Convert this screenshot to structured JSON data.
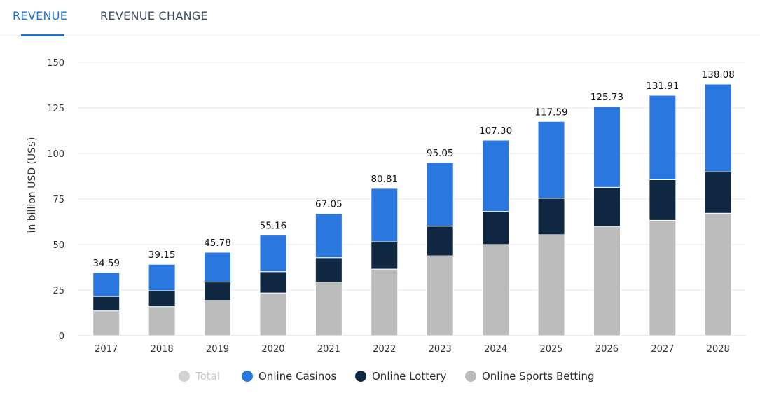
{
  "tabs": [
    {
      "label": "REVENUE",
      "active": true
    },
    {
      "label": "REVENUE CHANGE",
      "active": false
    }
  ],
  "colors": {
    "casinos": "#2a77e0",
    "lottery": "#102741",
    "sports": "#bcbcbc",
    "total_inactive": "#d2d2d2",
    "accent": "#1a6fd8"
  },
  "legend": [
    {
      "name": "Total",
      "color": "#d2d2d2",
      "inactive": true
    },
    {
      "name": "Online Casinos",
      "color": "#2a77e0",
      "inactive": false
    },
    {
      "name": "Online Lottery",
      "color": "#102741",
      "inactive": false
    },
    {
      "name": "Online Sports Betting",
      "color": "#bcbcbc",
      "inactive": false
    }
  ],
  "chart_data": {
    "type": "bar",
    "stacked": true,
    "categories": [
      "2017",
      "2018",
      "2019",
      "2020",
      "2021",
      "2022",
      "2023",
      "2024",
      "2025",
      "2026",
      "2027",
      "2028"
    ],
    "ylabel": "in billion USD (US$)",
    "ylim": [
      0,
      150
    ],
    "yticks": [
      0,
      25,
      50,
      75,
      100,
      125,
      150
    ],
    "grid": true,
    "legend_position": "bottom",
    "totals": [
      "34.59",
      "39.15",
      "45.78",
      "55.16",
      "67.05",
      "80.81",
      "95.05",
      "107.30",
      "117.59",
      "125.73",
      "131.91",
      "138.08"
    ],
    "series": [
      {
        "name": "Online Sports Betting",
        "values": [
          13.6,
          15.9,
          19.3,
          23.4,
          29.4,
          36.5,
          43.8,
          50.0,
          55.4,
          60.0,
          63.3,
          67.2
        ]
      },
      {
        "name": "Online Lottery",
        "values": [
          7.9,
          8.7,
          10.1,
          11.7,
          13.4,
          15.0,
          16.3,
          18.2,
          20.0,
          21.4,
          22.3,
          22.7
        ]
      },
      {
        "name": "Online Casinos",
        "values": [
          13.09,
          14.55,
          16.38,
          20.06,
          24.25,
          29.31,
          34.95,
          39.1,
          42.19,
          44.33,
          46.31,
          48.18
        ]
      }
    ]
  }
}
